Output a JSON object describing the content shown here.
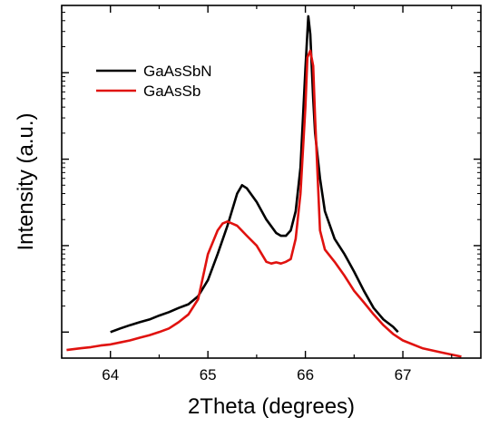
{
  "chart_data": {
    "type": "line",
    "xlabel": "2Theta (degrees)",
    "ylabel": "Intensity (a.u.)",
    "xlim": [
      63.5,
      67.8
    ],
    "ylim": [
      0.5,
      6000
    ],
    "yscale": "log",
    "x_ticks": [
      "64",
      "65",
      "66",
      "67"
    ],
    "y_tick_labels_shown": false,
    "grid": false,
    "legend_position": "top-left",
    "series": [
      {
        "name": "GaAsSbN",
        "color": "#000000",
        "x": [
          64.0,
          64.1,
          64.2,
          64.3,
          64.4,
          64.5,
          64.6,
          64.7,
          64.8,
          64.9,
          65.0,
          65.1,
          65.2,
          65.3,
          65.35,
          65.4,
          65.5,
          65.6,
          65.7,
          65.75,
          65.8,
          65.85,
          65.9,
          65.95,
          66.0,
          66.03,
          66.05,
          66.08,
          66.1,
          66.15,
          66.2,
          66.3,
          66.4,
          66.5,
          66.6,
          66.7,
          66.8,
          66.9,
          66.95
        ],
        "y": [
          1.0,
          1.1,
          1.2,
          1.3,
          1.4,
          1.55,
          1.7,
          1.9,
          2.1,
          2.6,
          4.0,
          8.0,
          17,
          40,
          50,
          46,
          32,
          20,
          14,
          13,
          13,
          15,
          25,
          80,
          1100,
          4500,
          2800,
          500,
          200,
          60,
          25,
          12,
          8,
          5,
          3.0,
          1.9,
          1.4,
          1.15,
          1.0
        ]
      },
      {
        "name": "GaAsSb",
        "color": "#e0120f",
        "x": [
          63.55,
          63.7,
          63.8,
          63.9,
          64.0,
          64.1,
          64.2,
          64.3,
          64.4,
          64.5,
          64.6,
          64.7,
          64.8,
          64.9,
          65.0,
          65.1,
          65.15,
          65.2,
          65.3,
          65.4,
          65.5,
          65.6,
          65.65,
          65.7,
          65.75,
          65.8,
          65.85,
          65.9,
          65.95,
          66.0,
          66.02,
          66.05,
          66.08,
          66.1,
          66.15,
          66.2,
          66.3,
          66.4,
          66.5,
          66.6,
          66.7,
          66.8,
          66.9,
          67.0,
          67.2,
          67.4,
          67.6
        ],
        "y": [
          0.62,
          0.65,
          0.67,
          0.7,
          0.72,
          0.76,
          0.8,
          0.86,
          0.92,
          1.0,
          1.1,
          1.3,
          1.6,
          2.4,
          8.0,
          15,
          18,
          19,
          17,
          13,
          10,
          6.5,
          6.2,
          6.4,
          6.2,
          6.5,
          7.0,
          12,
          40,
          400,
          1500,
          1800,
          1200,
          300,
          15,
          9,
          6.5,
          4.5,
          3.0,
          2.2,
          1.6,
          1.2,
          0.95,
          0.8,
          0.65,
          0.58,
          0.52
        ]
      }
    ]
  }
}
